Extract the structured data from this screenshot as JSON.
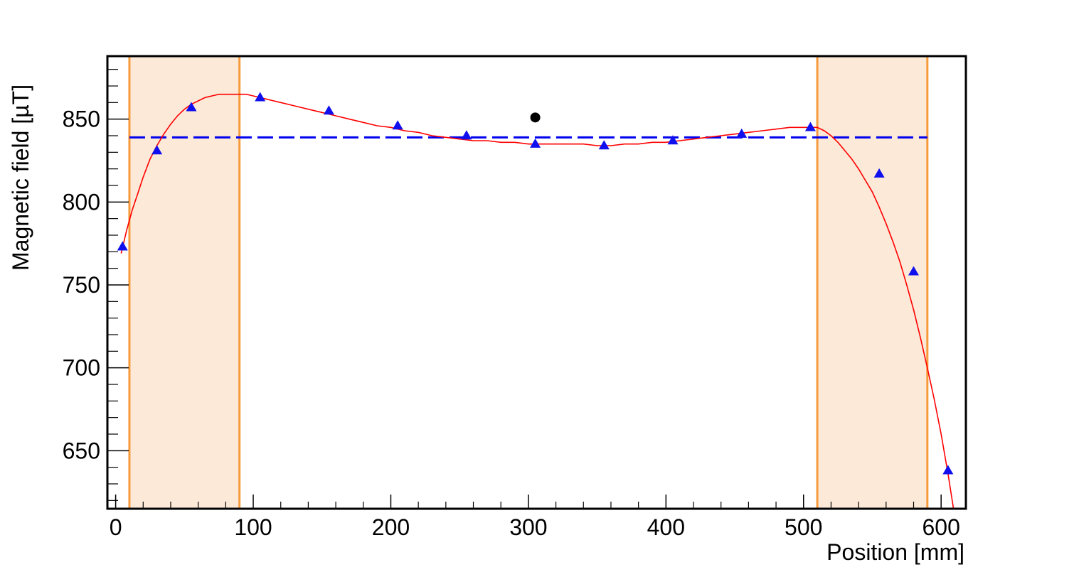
{
  "chart_data": {
    "type": "scatter",
    "title": "",
    "xlabel": "Position [mm]",
    "ylabel": "Magnetic field [µT]",
    "xlim": [
      -6,
      618
    ],
    "ylim": [
      615,
      888
    ],
    "x_ticks": [
      0,
      100,
      200,
      300,
      400,
      500,
      600
    ],
    "y_ticks": [
      650,
      700,
      750,
      800,
      850
    ],
    "grid": false,
    "colors": {
      "band_fill": "#fde9d7",
      "band_edge": "#f79a3c",
      "fit_curve": "#ff0000",
      "mean_line": "#0000ee",
      "markers": "#1010ee",
      "single_point": "#000000"
    },
    "shaded_bands": [
      {
        "x0": 10,
        "x1": 90
      },
      {
        "x0": 510,
        "x1": 590
      }
    ],
    "series": [
      {
        "marker": "triangle",
        "x": [
          5,
          30,
          55,
          105,
          155,
          205,
          255,
          305,
          355,
          405,
          455,
          505,
          555,
          580,
          605
        ],
        "y": [
          773,
          831,
          857,
          863,
          855,
          846,
          840,
          835,
          834,
          837,
          841,
          845,
          817,
          758,
          638
        ]
      },
      {
        "marker": "circle",
        "x": [
          305
        ],
        "y": [
          851
        ]
      }
    ],
    "fit_curve": {
      "x": [
        4,
        8,
        12,
        16,
        20,
        25,
        30,
        35,
        40,
        45,
        50,
        55,
        60,
        65,
        70,
        75,
        80,
        85,
        90,
        95,
        100,
        110,
        120,
        130,
        140,
        150,
        160,
        170,
        180,
        190,
        200,
        210,
        220,
        230,
        240,
        250,
        260,
        270,
        280,
        290,
        300,
        310,
        320,
        330,
        340,
        350,
        360,
        370,
        380,
        390,
        400,
        410,
        420,
        430,
        440,
        450,
        460,
        470,
        480,
        490,
        500,
        505,
        510,
        515,
        520,
        525,
        530,
        535,
        540,
        545,
        550,
        555,
        560,
        565,
        570,
        575,
        580,
        585,
        590,
        595,
        600,
        605,
        609
      ],
      "y": [
        769,
        783,
        795,
        805,
        815,
        826,
        834,
        841,
        847,
        852,
        856,
        859,
        861,
        863,
        864,
        865,
        865,
        865,
        865,
        865,
        864,
        862,
        860,
        858,
        856,
        854,
        852,
        850,
        848,
        846,
        845,
        843,
        842,
        840,
        839,
        838,
        837,
        837,
        836,
        836,
        835,
        835,
        835,
        835,
        835,
        834,
        834,
        835,
        835,
        836,
        836,
        837,
        838,
        839,
        840,
        841,
        842,
        843,
        844,
        845,
        845,
        845,
        845,
        843,
        840,
        836,
        831,
        826,
        820,
        813,
        806,
        797,
        787,
        776,
        764,
        750,
        735,
        718,
        700,
        681,
        660,
        636,
        614
      ]
    },
    "mean_line": {
      "y": 839,
      "x0": 10,
      "x1": 590
    }
  }
}
